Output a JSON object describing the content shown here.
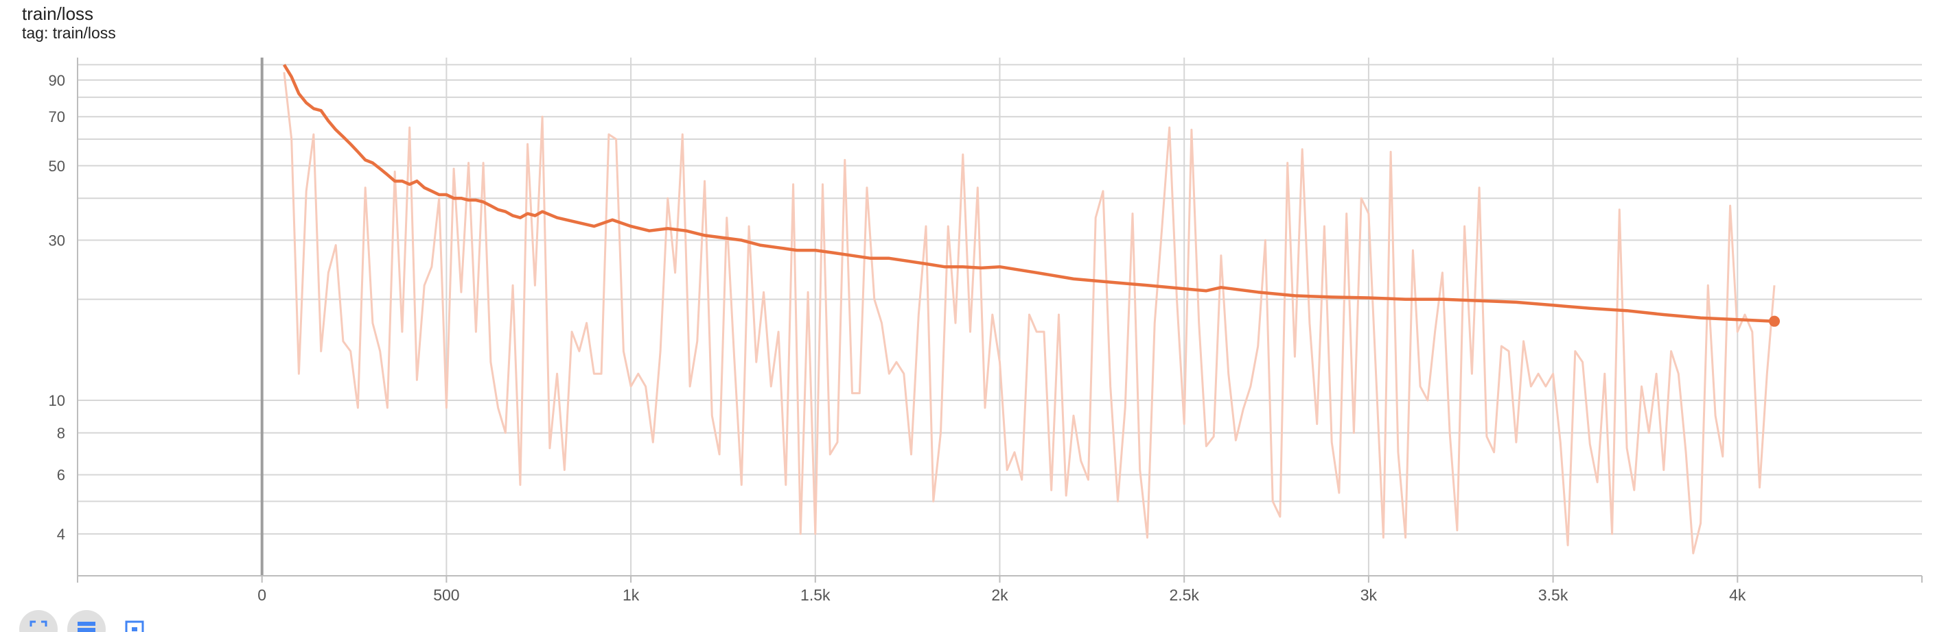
{
  "header": {
    "title": "train/loss",
    "subtitle": "tag: train/loss"
  },
  "colors": {
    "smoothed": "#e9713f",
    "raw": "#f7cbbb",
    "grid": "#d6d6d6",
    "zero_line": "#9e9e9e"
  },
  "toolbar": {
    "icons": [
      "fullscreen-icon",
      "toggle-log-scale-icon",
      "fit-domain-icon"
    ]
  },
  "chart_data": {
    "type": "line",
    "title": "train/loss",
    "xlabel": "",
    "ylabel": "",
    "y_scale": "log",
    "xlim": [
      -500,
      4500
    ],
    "ylim": [
      3,
      105
    ],
    "grid": true,
    "x_ticks": [
      0,
      500,
      1000,
      1500,
      2000,
      2500,
      3000,
      3500,
      4000
    ],
    "x_tick_labels": [
      "0",
      "500",
      "1k",
      "1.5k",
      "2k",
      "2.5k",
      "3k",
      "3.5k",
      "4k"
    ],
    "y_ticks": [
      4,
      6,
      8,
      10,
      30,
      50,
      70,
      90
    ],
    "y_tick_labels": [
      "4",
      "6",
      "8",
      "10",
      "30",
      "50",
      "70",
      "90"
    ],
    "series": [
      {
        "role": "raw",
        "x": [
          60,
          80,
          100,
          120,
          140,
          160,
          180,
          200,
          220,
          240,
          260,
          280,
          300,
          320,
          340,
          360,
          380,
          400,
          420,
          440,
          460,
          480,
          500,
          520,
          540,
          560,
          580,
          600,
          620,
          640,
          660,
          680,
          700,
          720,
          740,
          760,
          780,
          800,
          820,
          840,
          860,
          880,
          900,
          920,
          940,
          960,
          980,
          1000,
          1020,
          1040,
          1060,
          1080,
          1100,
          1120,
          1140,
          1160,
          1180,
          1200,
          1220,
          1240,
          1260,
          1280,
          1300,
          1320,
          1340,
          1360,
          1380,
          1400,
          1420,
          1440,
          1460,
          1480,
          1500,
          1520,
          1540,
          1560,
          1580,
          1600,
          1620,
          1640,
          1660,
          1680,
          1700,
          1720,
          1740,
          1760,
          1780,
          1800,
          1820,
          1840,
          1860,
          1880,
          1900,
          1920,
          1940,
          1960,
          1980,
          2000,
          2020,
          2040,
          2060,
          2080,
          2100,
          2120,
          2140,
          2160,
          2180,
          2200,
          2220,
          2240,
          2260,
          2280,
          2300,
          2320,
          2340,
          2360,
          2380,
          2400,
          2420,
          2440,
          2460,
          2480,
          2500,
          2520,
          2540,
          2560,
          2580,
          2600,
          2620,
          2640,
          2660,
          2680,
          2700,
          2720,
          2740,
          2760,
          2780,
          2800,
          2820,
          2840,
          2860,
          2880,
          2900,
          2920,
          2940,
          2960,
          2980,
          3000,
          3020,
          3040,
          3060,
          3080,
          3100,
          3120,
          3140,
          3160,
          3180,
          3200,
          3220,
          3240,
          3260,
          3280,
          3300,
          3320,
          3340,
          3360,
          3380,
          3400,
          3420,
          3440,
          3460,
          3480,
          3500,
          3520,
          3540,
          3560,
          3580,
          3600,
          3620,
          3640,
          3660,
          3680,
          3700,
          3720,
          3740,
          3760,
          3780,
          3800,
          3820,
          3840,
          3860,
          3880,
          3900,
          3920,
          3940,
          3960,
          3980,
          4000,
          4020,
          4040,
          4060,
          4080,
          4100
        ],
        "values": [
          95,
          60,
          12,
          42,
          62,
          14,
          24,
          29,
          15,
          14,
          9.5,
          43,
          17,
          14,
          9.5,
          48,
          16,
          65,
          11.5,
          22,
          25,
          40,
          9.5,
          49,
          21,
          51,
          16,
          51,
          13,
          9.5,
          8,
          22,
          5.6,
          58,
          22,
          70,
          7.2,
          12,
          6.2,
          16,
          14,
          17,
          12,
          12,
          62,
          60,
          14,
          11,
          12,
          11,
          7.5,
          14,
          40,
          24,
          62,
          11,
          15,
          45,
          9,
          6.9,
          35,
          13.5,
          5.6,
          33,
          13,
          21,
          11,
          16,
          5.6,
          44,
          4,
          21,
          4,
          44,
          6.9,
          7.5,
          52,
          10.5,
          10.5,
          43,
          20,
          17,
          12,
          13,
          12,
          6.9,
          18,
          33,
          5,
          8,
          33,
          17,
          54,
          16,
          43,
          9.5,
          18,
          13,
          6.2,
          7,
          5.8,
          18,
          16,
          16,
          5.4,
          18,
          5.2,
          9,
          6.6,
          5.8,
          35,
          42,
          11,
          5,
          9.5,
          36,
          6.2,
          3.9,
          17,
          33,
          65,
          20,
          8.5,
          64,
          17,
          7.3,
          7.8,
          27,
          12,
          7.6,
          9.4,
          11,
          14.5,
          30,
          5,
          4.5,
          51,
          13.5,
          56,
          17,
          8.5,
          33,
          7.5,
          5.3,
          36,
          8,
          40,
          36,
          12,
          3.9,
          55,
          7,
          3.9,
          28,
          11,
          10,
          16,
          24,
          8,
          4.1,
          33,
          12,
          43,
          7.8,
          7,
          14.5,
          14,
          7.5,
          15,
          11,
          12,
          11,
          12,
          7.5,
          3.7,
          14,
          13,
          7.4,
          5.7,
          12,
          4,
          37,
          7.2,
          5.4,
          11,
          8,
          12,
          6.2,
          14,
          12,
          7,
          3.5,
          4.3,
          22,
          9,
          6.8,
          38,
          16,
          18,
          16,
          5.5,
          12,
          22
        ]
      },
      {
        "role": "smoothed",
        "x": [
          60,
          80,
          100,
          120,
          140,
          160,
          180,
          200,
          220,
          240,
          260,
          280,
          300,
          320,
          340,
          360,
          380,
          400,
          420,
          440,
          460,
          480,
          500,
          520,
          540,
          560,
          580,
          600,
          620,
          640,
          660,
          680,
          700,
          720,
          740,
          760,
          800,
          850,
          900,
          950,
          1000,
          1050,
          1100,
          1150,
          1200,
          1250,
          1300,
          1350,
          1400,
          1450,
          1500,
          1550,
          1600,
          1650,
          1700,
          1750,
          1800,
          1850,
          1900,
          1950,
          2000,
          2100,
          2200,
          2300,
          2400,
          2500,
          2560,
          2600,
          2700,
          2800,
          2900,
          3000,
          3100,
          3200,
          3300,
          3400,
          3500,
          3600,
          3700,
          3800,
          3900,
          4000,
          4100
        ],
        "values": [
          100,
          92,
          82,
          77,
          74,
          73,
          68,
          64,
          61,
          58,
          55,
          52,
          51,
          49,
          47,
          45,
          45,
          44,
          45,
          43,
          42,
          41,
          41,
          40,
          40,
          39.5,
          39.5,
          39,
          38,
          37,
          36.5,
          35.5,
          35,
          36,
          35.5,
          36.5,
          35,
          34,
          33,
          34.5,
          33,
          32,
          32.5,
          32,
          31,
          30.5,
          30,
          29,
          28.5,
          28,
          28,
          27.5,
          27,
          26.5,
          26.5,
          26,
          25.5,
          25,
          25,
          24.8,
          25,
          24,
          23,
          22.5,
          22,
          21.5,
          21.2,
          21.7,
          21,
          20.5,
          20.3,
          20.2,
          20,
          20,
          19.8,
          19.6,
          19.2,
          18.8,
          18.5,
          18,
          17.6,
          17.4,
          17.2
        ]
      }
    ]
  }
}
